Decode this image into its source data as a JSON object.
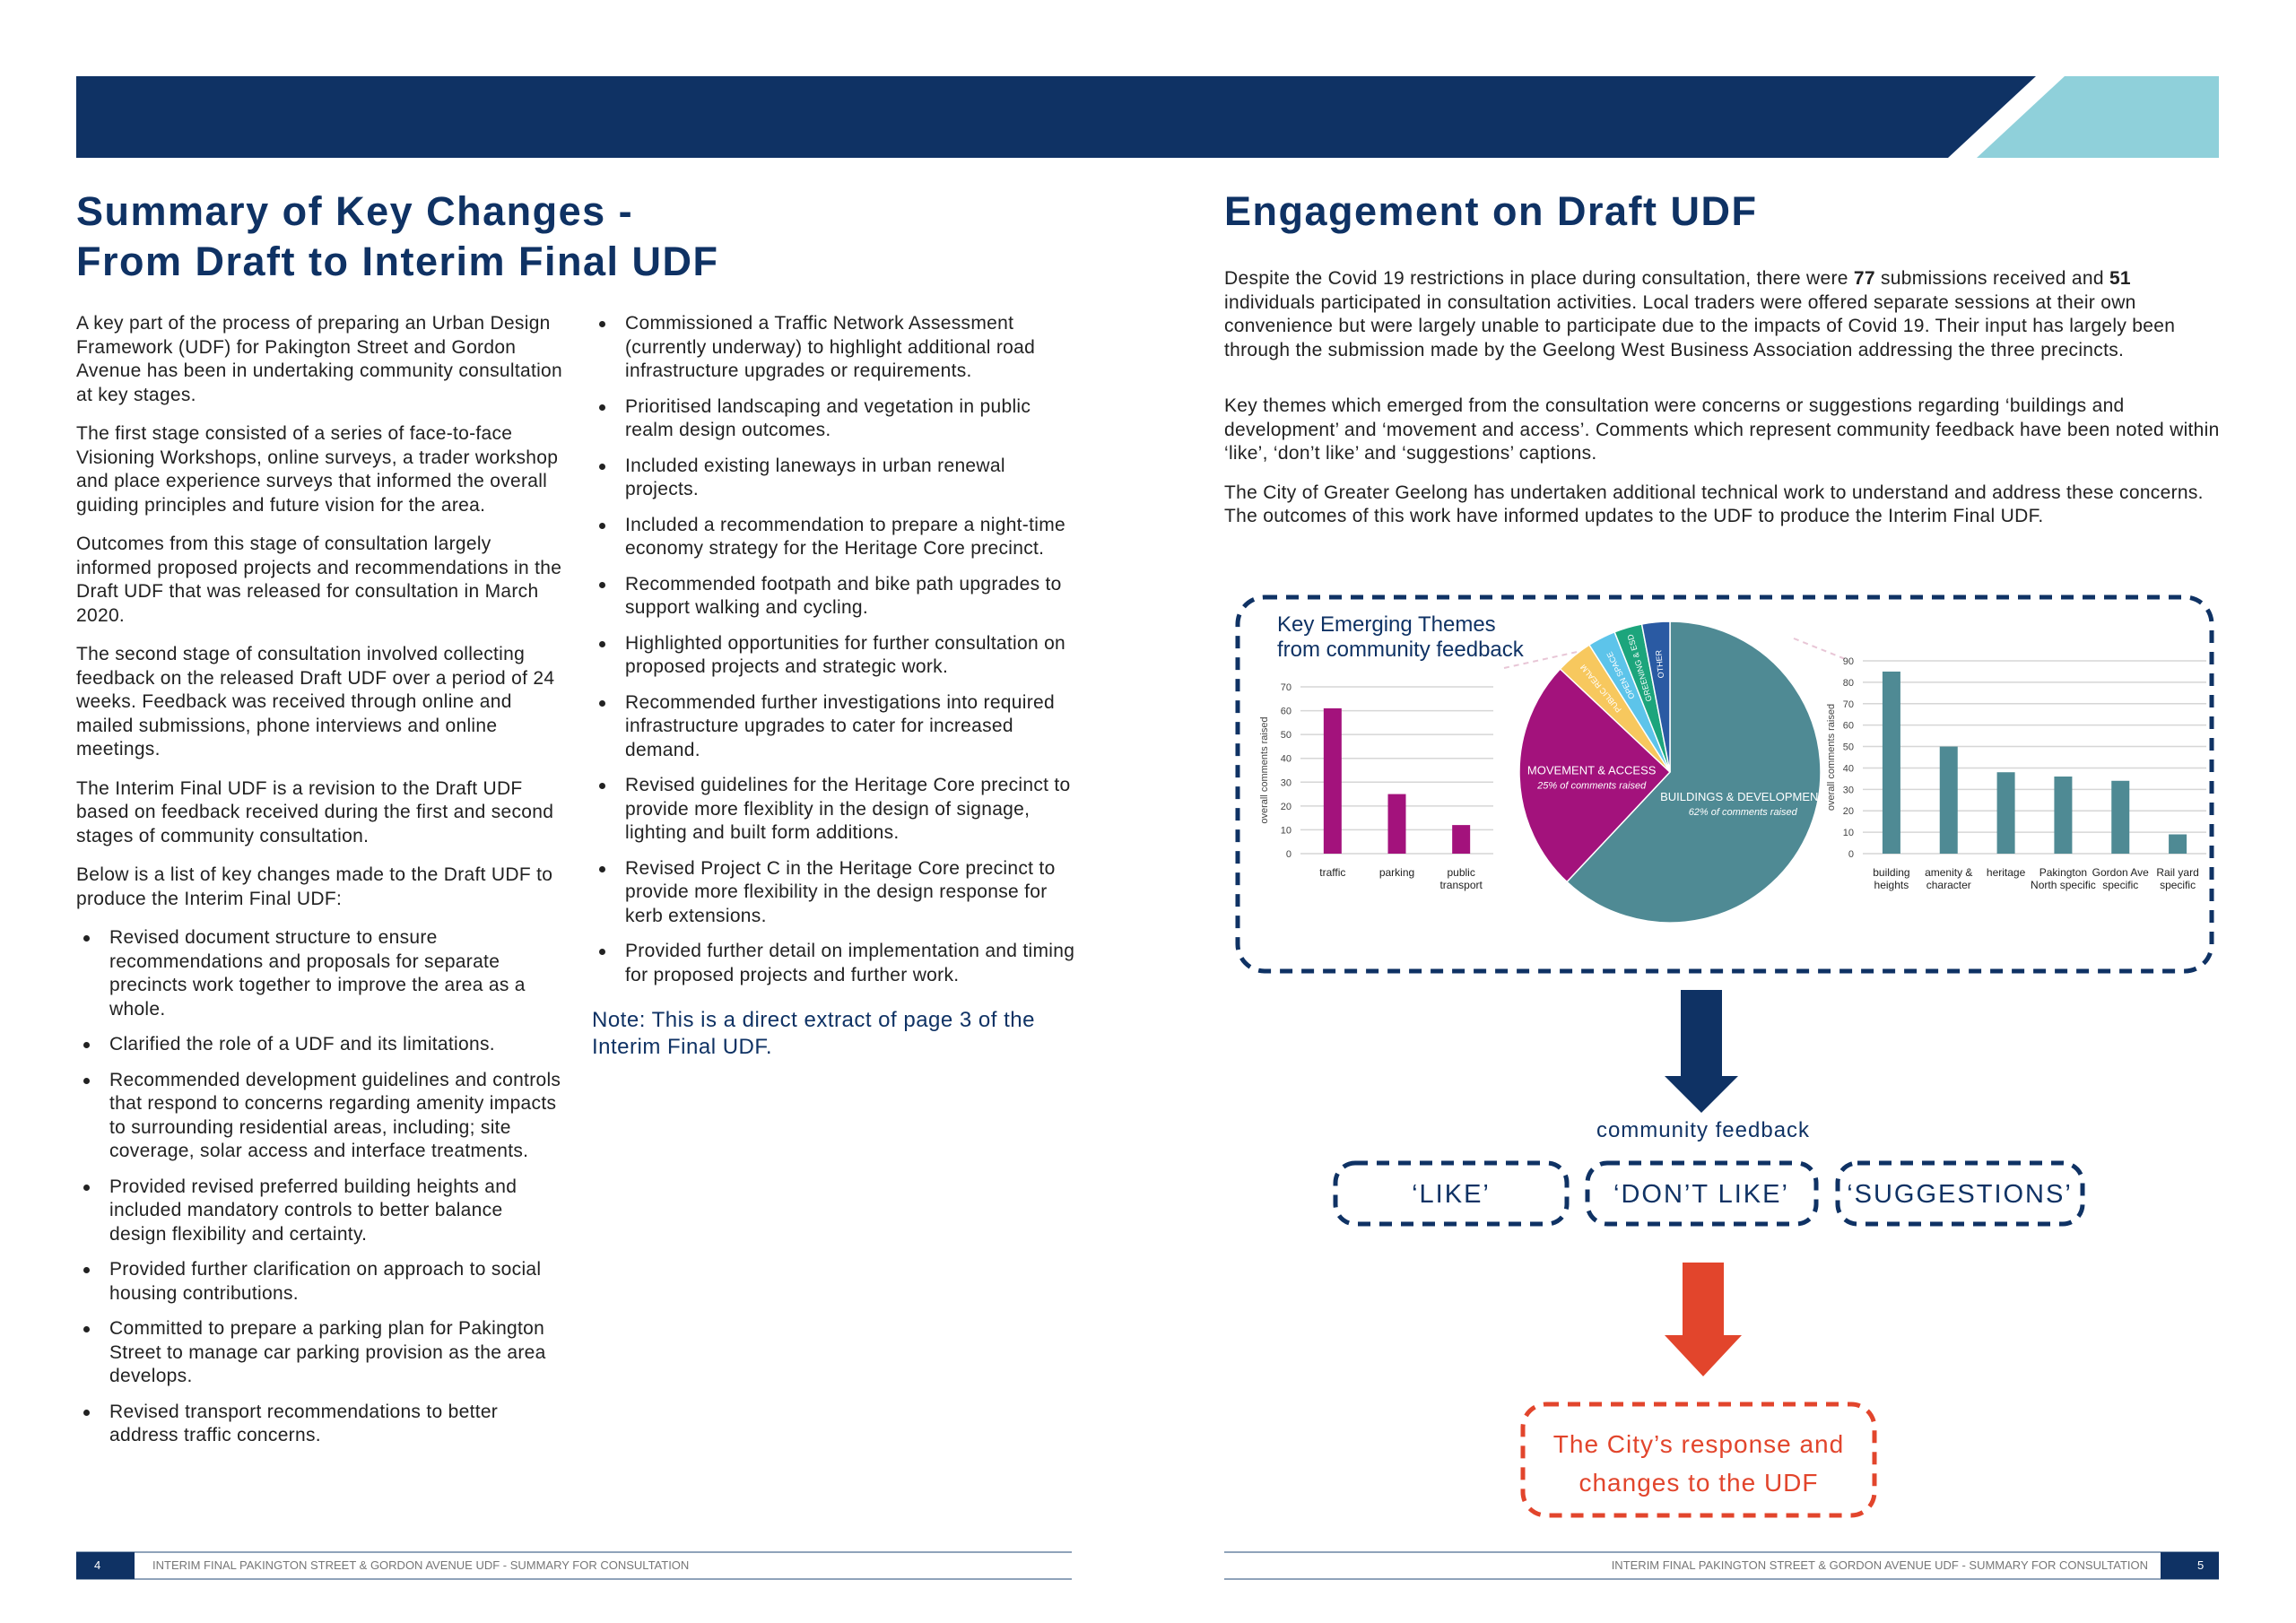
{
  "left_page": {
    "title": [
      "Summary of Key Changes -",
      "From Draft to Interim Final UDF"
    ],
    "paragraphs": [
      "A key part of the process of preparing an Urban Design Framework (UDF) for Pakington Street and Gordon Avenue has been in undertaking community consultation at key stages.",
      "The first stage consisted of a series of face-to-face Visioning Workshops, online surveys, a trader workshop and place experience surveys that informed the overall guiding principles and future vision for the area.",
      "Outcomes from this stage of consultation largely informed proposed projects and recommendations in the Draft UDF that was released for consultation in March 2020.",
      "The second stage of consultation involved collecting feedback on the released Draft UDF over a period of 24 weeks. Feedback was received through online and mailed submissions, phone interviews and online meetings.",
      "The Interim Final UDF is a revision to the Draft UDF based on feedback received during the first and second stages of community consultation.",
      "Below is a list of key changes made to the Draft UDF to produce the Interim Final UDF:"
    ],
    "key_changes": [
      "Revised document structure to ensure recommendations and proposals for separate precincts work together to improve the area as a whole.",
      "Clarified the role of a UDF and its limitations.",
      "Recommended development guidelines and controls that respond to concerns regarding amenity impacts to surrounding residential areas, including; site coverage, solar access and interface treatments.",
      "Provided revised preferred building heights and included mandatory controls to better balance design flexibility and certainty.",
      "Provided further clarification on approach to social housing contributions.",
      "Committed to prepare a parking plan for Pakington Street to manage car parking provision as the area develops.",
      "Revised transport recommendations to better address traffic concerns.",
      "Commissioned a Traffic Network Assessment (currently underway) to highlight additional road infrastructure upgrades or requirements.",
      "Prioritised landscaping and vegetation in public realm design outcomes.",
      "Included existing laneways in urban renewal projects.",
      "Included a recommendation to prepare a night-time economy strategy for the Heritage Core precinct.",
      "Recommended footpath and bike path upgrades to support walking and cycling.",
      "Highlighted opportunities for further consultation on proposed projects and strategic work.",
      "Recommended further investigations into required infrastructure upgrades to cater for increased demand.",
      "Revised guidelines for the Heritage Core precinct to provide more flexiblity in the design of signage, lighting and built form additions.",
      "Revised Project C in the Heritage Core precinct to provide more flexibility in the design response for kerb extensions.",
      "Provided further detail on implementation and timing for proposed projects and further work."
    ],
    "note": "Note: This is a direct extract of page 3 of the Interim Final UDF.",
    "footer": {
      "page": "4",
      "text": "INTERIM FINAL PAKINGTON STREET & GORDON AVENUE UDF - SUMMARY FOR CONSULTATION"
    }
  },
  "right_page": {
    "title": "Engagement on Draft UDF",
    "intro": [
      "Despite the Covid 19 restrictions in place during consultation, there were ",
      "77",
      " submissions received and ",
      "51",
      " individuals participated in consultation activities. Local traders were offered separate sessions at their own convenience but were largely unable to participate due to the impacts of Covid 19. Their input has largely been through the submission made by the Geelong West Business Association addressing the three precincts."
    ],
    "paragraphs": [
      "Key themes which emerged from the consultation were concerns or suggestions regarding ‘buildings and development’ and ‘movement and access’. Comments which represent community feedback have been noted within ‘like’, ‘don’t like’ and ‘suggestions’ captions.",
      "The City of Greater Geelong has undertaken additional technical work to understand and address these concerns. The outcomes of this work have informed updates to the UDF to produce the Interim Final UDF."
    ],
    "themes_title": [
      "Key Emerging Themes",
      "from community feedback"
    ],
    "charts": {
      "movement": {
        "type": "bar",
        "y_label": "overall comments raised",
        "categories": [
          "traffic",
          "parking",
          "public transport"
        ],
        "values": [
          61,
          25,
          12
        ],
        "color": "#a3127c",
        "ylim": [
          0,
          70
        ],
        "yticks": [
          0,
          10,
          20,
          30,
          40,
          50,
          60,
          70
        ],
        "grid": true
      },
      "themes": {
        "type": "pie",
        "slices": [
          {
            "label": "BUILDINGS & DEVELOPMENT",
            "note": "62% of comments raised",
            "value": 62,
            "color": "#4f8a94"
          },
          {
            "label": "MOVEMENT & ACCESS",
            "note": "25% of comments raised",
            "value": 25,
            "color": "#a3127c"
          },
          {
            "label": "PUBLIC REALM",
            "value": 4,
            "color": "#f7c85e"
          },
          {
            "label": "OPEN SPACE",
            "value": 3,
            "color": "#5dc4ea"
          },
          {
            "label": "GREENING & ESD",
            "value": 3,
            "color": "#1ca57c"
          },
          {
            "label": "OTHER",
            "value": 3,
            "color": "#2a5aa3"
          }
        ]
      },
      "buildings": {
        "type": "bar",
        "y_label": "overall comments raised",
        "categories": [
          "building heights",
          "amenity & character",
          "heritage",
          "Pakington North specific",
          "Gordon Ave specific",
          "Rail yard specific"
        ],
        "values": [
          85,
          50,
          38,
          36,
          34,
          9
        ],
        "color": "#4f8a94",
        "ylim": [
          0,
          90
        ],
        "yticks": [
          0,
          10,
          20,
          30,
          40,
          50,
          60,
          70,
          80,
          90
        ],
        "grid": true
      }
    },
    "flow": {
      "feedback_label": "community feedback",
      "boxes": [
        "‘LIKE’",
        "‘DON’T LIKE’",
        "‘SUGGESTIONS’"
      ],
      "response": [
        "The City’s response and",
        "changes to the UDF"
      ]
    },
    "footer": {
      "page": "5",
      "text": "INTERIM FINAL PAKINGTON STREET & GORDON AVENUE UDF - SUMMARY FOR CONSULTATION"
    }
  }
}
